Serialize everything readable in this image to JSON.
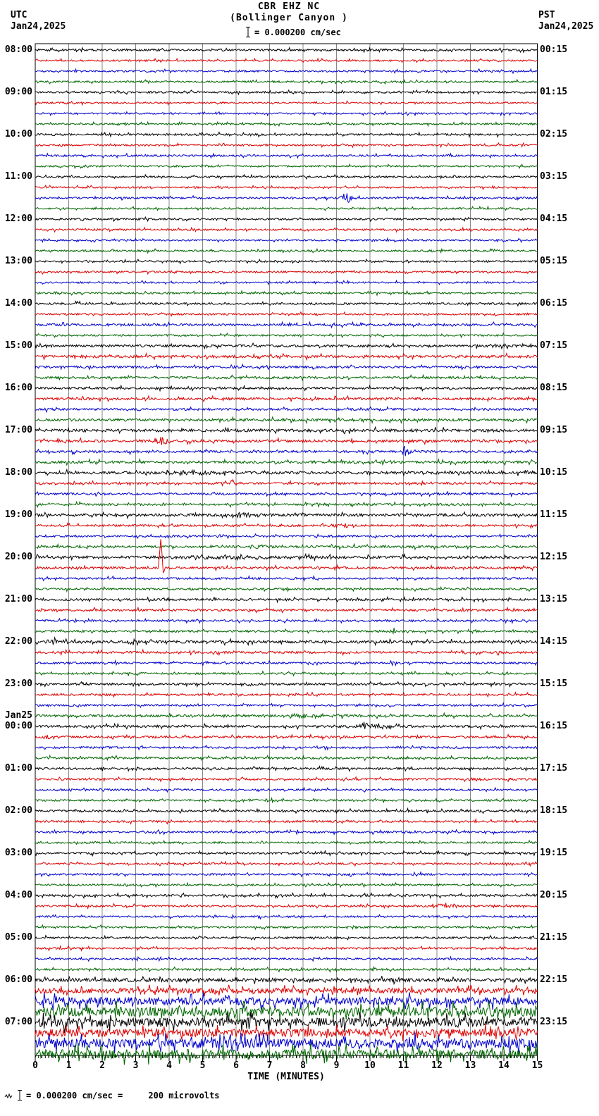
{
  "header": {
    "title": "CBR EHZ NC",
    "subtitle": "(Bollinger Canyon )",
    "scale_text": "= 0.000200 cm/sec",
    "utc_label": "UTC",
    "utc_date": "Jan24,2025",
    "pst_label": "PST",
    "pst_date": "Jan24,2025"
  },
  "footer": {
    "note": "= 0.000200 cm/sec =     200 microvolts"
  },
  "x_axis": {
    "label": "TIME (MINUTES)",
    "ticks": [
      0,
      1,
      2,
      3,
      4,
      5,
      6,
      7,
      8,
      9,
      10,
      11,
      12,
      13,
      14,
      15
    ],
    "minor_tick_interval_minutes": 0.1
  },
  "colors": {
    "grid": "#888888",
    "border": "#000000",
    "trace": {
      "k": "#000000",
      "r": "#dd0000",
      "b": "#0000cc",
      "g": "#006600"
    }
  },
  "chart_data": {
    "type": "line",
    "subtype": "helicorder-seismogram",
    "title": "CBR EHZ NC (Bollinger Canyon )",
    "xlabel": "TIME (MINUTES)",
    "x_range": [
      0,
      15
    ],
    "x_ticks": [
      0,
      1,
      2,
      3,
      4,
      5,
      6,
      7,
      8,
      9,
      10,
      11,
      12,
      13,
      14,
      15
    ],
    "minutes_per_row": 15,
    "rows_per_hour": 4,
    "color_cycle": [
      "black",
      "red",
      "blue",
      "green"
    ],
    "legend_position": "none",
    "grid": "vertical-only",
    "rows": [
      {
        "c": "k",
        "a": 1.4,
        "u": "08:00",
        "p": "00:15"
      },
      {
        "c": "r",
        "a": 1.2
      },
      {
        "c": "b",
        "a": 1.3
      },
      {
        "c": "g",
        "a": 1.3
      },
      {
        "c": "k",
        "a": 1.3,
        "u": "09:00",
        "p": "01:15"
      },
      {
        "c": "r",
        "a": 1.2
      },
      {
        "c": "b",
        "a": 1.2
      },
      {
        "c": "g",
        "a": 1.2
      },
      {
        "c": "k",
        "a": 1.4,
        "u": "10:00",
        "p": "02:15"
      },
      {
        "c": "r",
        "a": 1.3
      },
      {
        "c": "b",
        "a": 1.3
      },
      {
        "c": "g",
        "a": 1.2
      },
      {
        "c": "k",
        "a": 1.3,
        "u": "11:00",
        "p": "03:15"
      },
      {
        "c": "r",
        "a": 1.2
      },
      {
        "c": "b",
        "a": 1.3,
        "e": [
          [
            9.3,
            11,
            0.16,
            "b"
          ]
        ]
      },
      {
        "c": "g",
        "a": 1.2
      },
      {
        "c": "k",
        "a": 1.3,
        "u": "12:00",
        "p": "04:15"
      },
      {
        "c": "r",
        "a": 1.3
      },
      {
        "c": "b",
        "a": 1.2
      },
      {
        "c": "g",
        "a": 1.3
      },
      {
        "c": "k",
        "a": 1.3,
        "u": "13:00",
        "p": "05:15"
      },
      {
        "c": "r",
        "a": 1.3
      },
      {
        "c": "b",
        "a": 1.2
      },
      {
        "c": "g",
        "a": 1.3
      },
      {
        "c": "k",
        "a": 1.4,
        "u": "14:00",
        "p": "06:15"
      },
      {
        "c": "r",
        "a": 1.3
      },
      {
        "c": "b",
        "a": 1.6
      },
      {
        "c": "g",
        "a": 1.3
      },
      {
        "c": "k",
        "a": 1.7,
        "u": "15:00",
        "p": "07:15"
      },
      {
        "c": "r",
        "a": 1.9
      },
      {
        "c": "b",
        "a": 1.6
      },
      {
        "c": "g",
        "a": 1.6
      },
      {
        "c": "k",
        "a": 1.5,
        "u": "16:00",
        "p": "08:15"
      },
      {
        "c": "r",
        "a": 1.7
      },
      {
        "c": "b",
        "a": 1.6
      },
      {
        "c": "g",
        "a": 1.8
      },
      {
        "c": "k",
        "a": 2.0,
        "u": "17:00",
        "p": "09:15"
      },
      {
        "c": "r",
        "a": 1.8,
        "e": [
          [
            3.8,
            5,
            0.25,
            "b"
          ]
        ]
      },
      {
        "c": "b",
        "a": 1.6,
        "e": [
          [
            11.05,
            8,
            0.12,
            "b"
          ]
        ]
      },
      {
        "c": "g",
        "a": 1.8,
        "e": [
          [
            10.3,
            2.5,
            0.3,
            "b"
          ]
        ]
      },
      {
        "c": "k",
        "a": 1.9,
        "u": "18:00",
        "p": "10:15",
        "e": [
          [
            4.8,
            3,
            0.7,
            "b"
          ]
        ]
      },
      {
        "c": "r",
        "a": 1.5,
        "e": [
          [
            5.9,
            5,
            0.1,
            "s"
          ],
          [
            5.97,
            -3,
            0.08,
            "s"
          ]
        ]
      },
      {
        "c": "b",
        "a": 1.5
      },
      {
        "c": "g",
        "a": 1.5
      },
      {
        "c": "k",
        "a": 1.9,
        "u": "19:00",
        "p": "11:15",
        "e": [
          [
            6.3,
            4,
            0.4,
            "b"
          ]
        ]
      },
      {
        "c": "r",
        "a": 1.5,
        "e": [
          [
            9.2,
            2.5,
            0.4,
            "b"
          ]
        ]
      },
      {
        "c": "b",
        "a": 1.4
      },
      {
        "c": "g",
        "a": 1.6,
        "e": [
          [
            6.6,
            2,
            0.4,
            "b"
          ]
        ]
      },
      {
        "c": "k",
        "a": 1.9,
        "u": "20:00",
        "p": "12:15",
        "e": [
          [
            5.5,
            2.5,
            1.2,
            "b"
          ]
        ]
      },
      {
        "c": "r",
        "a": 1.6,
        "e": [
          [
            3.75,
            42,
            0.07,
            "s"
          ],
          [
            3.83,
            -7,
            0.05,
            "s"
          ]
        ]
      },
      {
        "c": "b",
        "a": 1.4
      },
      {
        "c": "g",
        "a": 1.4
      },
      {
        "c": "k",
        "a": 1.5,
        "u": "21:00",
        "p": "13:15"
      },
      {
        "c": "r",
        "a": 1.6
      },
      {
        "c": "b",
        "a": 1.4
      },
      {
        "c": "g",
        "a": 1.5,
        "e": [
          [
            10.7,
            4.5,
            0.1,
            "b"
          ]
        ]
      },
      {
        "c": "k",
        "a": 1.9,
        "u": "22:00",
        "p": "14:15",
        "e": [
          [
            0.5,
            2.5,
            0.5,
            "b"
          ]
        ]
      },
      {
        "c": "r",
        "a": 1.6
      },
      {
        "c": "b",
        "a": 1.4
      },
      {
        "c": "g",
        "a": 1.4
      },
      {
        "c": "k",
        "a": 1.5,
        "u": "23:00",
        "p": "15:15"
      },
      {
        "c": "r",
        "a": 1.4
      },
      {
        "c": "b",
        "a": 1.3
      },
      {
        "c": "g",
        "a": 1.6,
        "e": [
          [
            8.0,
            2.5,
            1.0,
            "b"
          ],
          [
            9.15,
            6,
            0.12,
            "b"
          ]
        ]
      },
      {
        "c": "k",
        "a": 1.6,
        "u": "00:00",
        "p": "16:15",
        "d": "Jan25",
        "e": [
          [
            10.0,
            3.5,
            0.8,
            "b"
          ]
        ]
      },
      {
        "c": "r",
        "a": 1.5,
        "e": [
          [
            0.45,
            3.5,
            0.25,
            "b"
          ]
        ]
      },
      {
        "c": "b",
        "a": 1.4
      },
      {
        "c": "g",
        "a": 1.5
      },
      {
        "c": "k",
        "a": 1.5,
        "u": "01:00",
        "p": "17:15"
      },
      {
        "c": "r",
        "a": 1.4
      },
      {
        "c": "b",
        "a": 1.3
      },
      {
        "c": "g",
        "a": 1.3
      },
      {
        "c": "k",
        "a": 1.5,
        "u": "02:00",
        "p": "18:15"
      },
      {
        "c": "r",
        "a": 1.4
      },
      {
        "c": "b",
        "a": 1.4,
        "e": [
          [
            10.9,
            2.5,
            0.15,
            "b"
          ]
        ]
      },
      {
        "c": "g",
        "a": 1.3
      },
      {
        "c": "k",
        "a": 1.4,
        "u": "03:00",
        "p": "19:15"
      },
      {
        "c": "r",
        "a": 1.3
      },
      {
        "c": "b",
        "a": 1.4
      },
      {
        "c": "g",
        "a": 1.3
      },
      {
        "c": "k",
        "a": 1.5,
        "u": "04:00",
        "p": "20:15"
      },
      {
        "c": "r",
        "a": 1.4,
        "e": [
          [
            12.1,
            2.5,
            0.6,
            "b"
          ]
        ]
      },
      {
        "c": "b",
        "a": 1.3
      },
      {
        "c": "g",
        "a": 1.3
      },
      {
        "c": "k",
        "a": 1.4,
        "u": "05:00",
        "p": "21:15"
      },
      {
        "c": "r",
        "a": 1.4
      },
      {
        "c": "b",
        "a": 1.3
      },
      {
        "c": "g",
        "a": 1.5
      },
      {
        "c": "k",
        "a": 2.4,
        "u": "06:00",
        "p": "22:15"
      },
      {
        "c": "r",
        "a": 3.5
      },
      {
        "c": "b",
        "a": 5.5
      },
      {
        "c": "g",
        "a": 6.5
      },
      {
        "c": "k",
        "a": 6.5,
        "u": "07:00",
        "p": "23:15"
      },
      {
        "c": "r",
        "a": 5.5
      },
      {
        "c": "b",
        "a": 6.5
      },
      {
        "c": "g",
        "a": 6.5
      }
    ]
  }
}
